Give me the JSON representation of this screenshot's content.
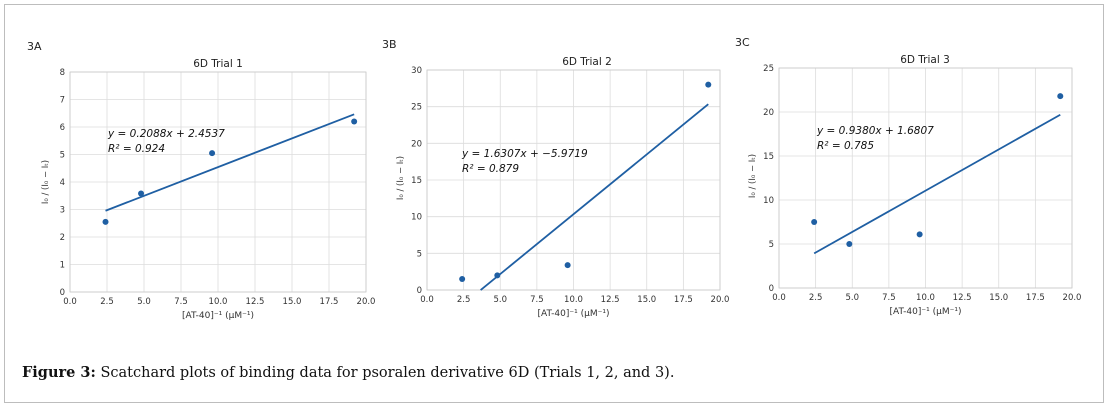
{
  "caption": {
    "label": "Figure 3:",
    "text": " Scatchard plots of binding data for psoralen derivative 6D (Trials 1, 2, and 3)."
  },
  "chart_data": [
    {
      "panel": "3A",
      "type": "scatter",
      "title": "6D Trial 1",
      "xlabel": "[AT-40]⁻¹ (μM⁻¹)",
      "ylabel": "I₀ / (I₀ − Iₜ)",
      "xlim": [
        0,
        20
      ],
      "ylim": [
        0,
        8
      ],
      "xticks": [
        0,
        2.5,
        5,
        7.5,
        10,
        12.5,
        15,
        17.5,
        20
      ],
      "yticks": [
        0,
        1,
        2,
        3,
        4,
        5,
        6,
        7,
        8
      ],
      "grid": true,
      "points": [
        [
          2.4,
          2.55
        ],
        [
          4.8,
          3.58
        ],
        [
          9.6,
          5.05
        ],
        [
          19.2,
          6.2
        ]
      ],
      "fit": {
        "slope": 0.2088,
        "intercept": 2.4537,
        "x_range": [
          2.4,
          19.2
        ]
      },
      "annotation": {
        "equation": "y = 0.2088x + 2.4537",
        "r2": "R² = 0.924"
      },
      "colors": {
        "points": "#1f5fa3",
        "line": "#1f5fa3"
      }
    },
    {
      "panel": "3B",
      "type": "scatter",
      "title": "6D Trial 2",
      "xlabel": "[AT-40]⁻¹ (μM⁻¹)",
      "ylabel": "I₀ / (I₀ − Iₜ)",
      "xlim": [
        0,
        20
      ],
      "ylim": [
        0,
        30
      ],
      "xticks": [
        0,
        2.5,
        5,
        7.5,
        10,
        12.5,
        15,
        17.5,
        20
      ],
      "yticks": [
        0,
        5,
        10,
        15,
        20,
        25,
        30
      ],
      "grid": true,
      "points": [
        [
          2.4,
          1.5
        ],
        [
          4.8,
          2.0
        ],
        [
          9.6,
          3.4
        ],
        [
          19.2,
          28.0
        ]
      ],
      "fit": {
        "slope": 1.6307,
        "intercept": -5.9719,
        "x_range": [
          3.66,
          19.2
        ]
      },
      "annotation": {
        "equation": "y = 1.6307x + −5.9719",
        "r2": "R² = 0.879"
      },
      "colors": {
        "points": "#1f5fa3",
        "line": "#1f5fa3"
      }
    },
    {
      "panel": "3C",
      "type": "scatter",
      "title": "6D Trial 3",
      "xlabel": "[AT-40]⁻¹ (μM⁻¹)",
      "ylabel": "I₀ / (I₀ − Iₜ)",
      "xlim": [
        0,
        20
      ],
      "ylim": [
        0,
        25
      ],
      "xticks": [
        0,
        2.5,
        5,
        7.5,
        10,
        12.5,
        15,
        17.5,
        20
      ],
      "yticks": [
        0,
        5,
        10,
        15,
        20,
        25
      ],
      "grid": true,
      "points": [
        [
          2.4,
          7.5
        ],
        [
          4.8,
          5.0
        ],
        [
          9.6,
          6.1
        ],
        [
          19.2,
          21.8
        ]
      ],
      "fit": {
        "slope": 0.938,
        "intercept": 1.6807,
        "x_range": [
          2.4,
          19.2
        ]
      },
      "annotation": {
        "equation": "y = 0.9380x + 1.6807",
        "r2": "R² = 0.785"
      },
      "colors": {
        "points": "#1f5fa3",
        "line": "#1f5fa3"
      }
    }
  ]
}
